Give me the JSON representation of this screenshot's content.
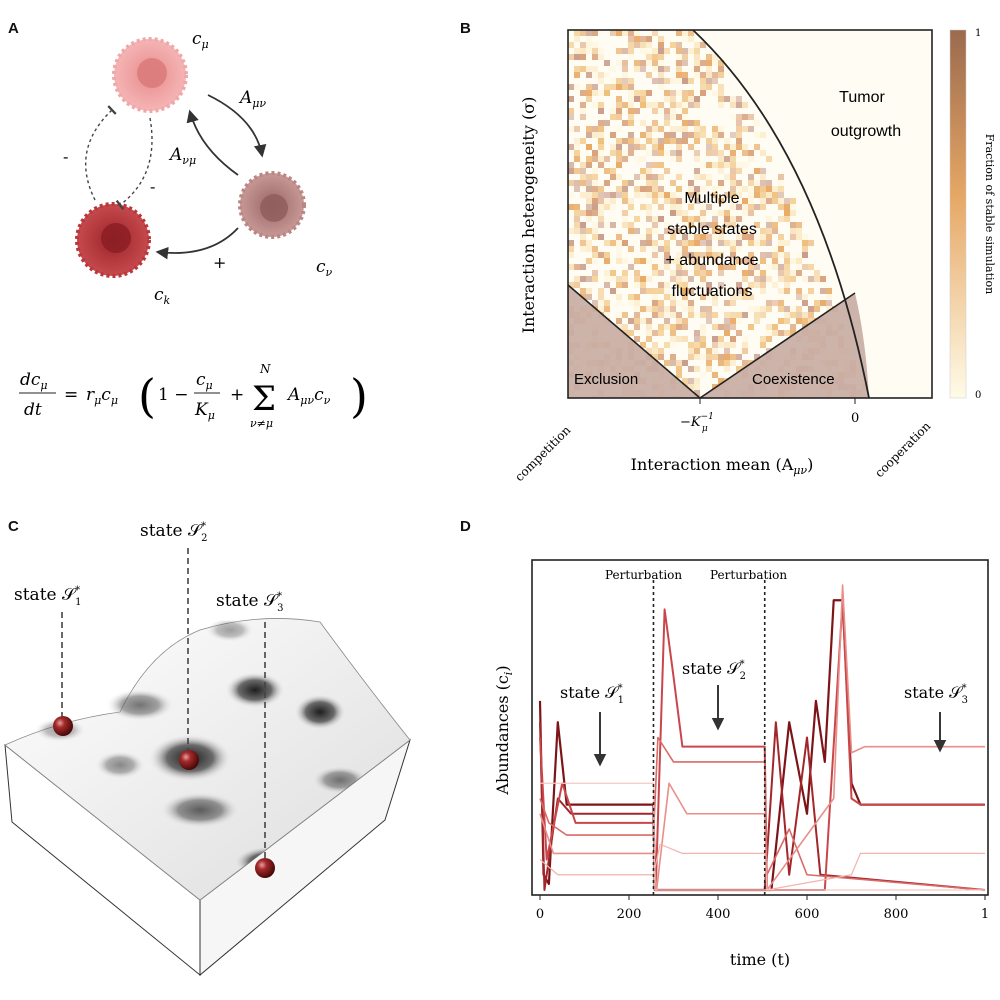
{
  "panels": {
    "a": "A",
    "b": "B",
    "c": "C",
    "d": "D"
  },
  "panel_a": {
    "cell_labels": {
      "mu": "c",
      "mu_sub": "μ",
      "nu": "c",
      "nu_sub": "ν",
      "k": "c",
      "k_sub": "k"
    },
    "edge_labels": {
      "a_munu": "A",
      "a_munu_sub": "μν",
      "a_numu": "A",
      "a_numu_sub": "νμ"
    },
    "signs": {
      "minus1": "-",
      "minus2": "-",
      "plus": "+"
    },
    "equation": {
      "lhs_num": "dc",
      "lhs_num_sub": "μ",
      "lhs_den": "dt",
      "eq": "=",
      "r": "r",
      "r_sub": "μ",
      "c": "c",
      "c_sub": "μ",
      "one_minus": "1 −",
      "frac_num": "c",
      "frac_num_sub": "μ",
      "frac_den": "K",
      "frac_den_sub": "μ",
      "plus": "+",
      "sum_top": "N",
      "sum_bottom": "ν≠μ",
      "term": "A",
      "term_sub": "μν",
      "term_c": "c",
      "term_c_sub": "ν"
    },
    "colors": {
      "mu": "#f0a7a7",
      "nu": "#b98684",
      "k": "#b8383c"
    }
  },
  "panel_b": {
    "ylabel": "Interaction heterogeneity (σ)",
    "xlabel": "Interaction mean (A",
    "xlabel_sub": "μν",
    "xlabel_end": ")",
    "competition": "competition",
    "cooperation": "cooperation",
    "tick_kinv": "−K",
    "tick_kinv_sup": "−1",
    "tick_kinv_sub": "μ",
    "tick_zero": "0",
    "colorbar_label": "Fraction of stable simulation",
    "colorbar_top": "1",
    "colorbar_bottom": "0",
    "regions": {
      "tumor1": "Tumor",
      "tumor2": "outgrowth",
      "multi1": "Multiple",
      "multi2": "stable states",
      "multi3": "+ abundance",
      "multi4": "fluctuations",
      "exclusion": "Exclusion",
      "coexistence": "Coexistence"
    },
    "colors": {
      "region": "#c9aea5",
      "bar_top": "#9b6a4e",
      "bar_mid": "#e8a964",
      "bar_bottom": "#fffbe8"
    }
  },
  "panel_c": {
    "state1": "state 𝒮",
    "state1_sub": "1",
    "state2": "state 𝒮",
    "state2_sub": "2",
    "state3": "state 𝒮",
    "state3_sub": "3",
    "star": "*",
    "ball_color": "#8c1d1d"
  },
  "panel_d": {
    "ylabel": "Abundances (c",
    "ylabel_sub": "i",
    "ylabel_end": ")",
    "xlabel": "time (t)",
    "perturbation1": "Perturbation",
    "perturbation2": "Perturbation",
    "state1": "state 𝒮",
    "state1_sub": "1",
    "state2": "state 𝒮",
    "state2_sub": "2",
    "state3": "state 𝒮",
    "state3_sub": "3",
    "star": "*",
    "xticks": [
      "0",
      "200",
      "400",
      "600",
      "800",
      "1"
    ]
  },
  "chart_data": {
    "type": "line",
    "xlabel": "time (t)",
    "ylabel": "Abundances (c_i)",
    "xlim": [
      0,
      1000
    ],
    "xticks": [
      0,
      200,
      400,
      600,
      800
    ],
    "perturbations": [
      255,
      505
    ],
    "series": [
      {
        "values": [
          [
            0,
            0.62
          ],
          [
            8,
            0.05
          ],
          [
            20,
            0.02
          ],
          [
            40,
            0.55
          ],
          [
            60,
            0.28
          ],
          [
            100,
            0.28
          ],
          [
            255,
            0.28
          ],
          [
            258,
            0.0
          ],
          [
            505,
            0.0
          ],
          [
            520,
            0.0
          ],
          [
            560,
            0.55
          ],
          [
            600,
            0.25
          ],
          [
            620,
            0.62
          ],
          [
            640,
            0.42
          ],
          [
            660,
            0.95
          ],
          [
            680,
            0.95
          ],
          [
            700,
            0.35
          ],
          [
            720,
            0.28
          ],
          [
            1000,
            0.28
          ]
        ]
      },
      {
        "values": [
          [
            0,
            0.55
          ],
          [
            10,
            0.0
          ],
          [
            40,
            0.3
          ],
          [
            70,
            0.25
          ],
          [
            255,
            0.25
          ],
          [
            258,
            0.0
          ],
          [
            505,
            0.0
          ],
          [
            530,
            0.55
          ],
          [
            560,
            0.05
          ],
          [
            600,
            0.5
          ],
          [
            630,
            0.05
          ],
          [
            1000,
            0.0
          ]
        ]
      },
      {
        "values": [
          [
            0,
            0.5
          ],
          [
            15,
            0.1
          ],
          [
            50,
            0.35
          ],
          [
            80,
            0.22
          ],
          [
            255,
            0.22
          ],
          [
            260,
            0.0
          ],
          [
            280,
            0.92
          ],
          [
            300,
            0.7
          ],
          [
            320,
            0.47
          ],
          [
            505,
            0.47
          ],
          [
            510,
            0.0
          ],
          [
            640,
            0.0
          ],
          [
            680,
            0.95
          ],
          [
            700,
            0.3
          ],
          [
            720,
            0.28
          ],
          [
            1000,
            0.28
          ]
        ]
      },
      {
        "values": [
          [
            0,
            0.3
          ],
          [
            20,
            0.22
          ],
          [
            60,
            0.18
          ],
          [
            255,
            0.18
          ],
          [
            265,
            0.5
          ],
          [
            300,
            0.42
          ],
          [
            505,
            0.42
          ],
          [
            510,
            0.05
          ],
          [
            560,
            0.2
          ],
          [
            600,
            0.05
          ],
          [
            1000,
            0.0
          ]
        ]
      },
      {
        "values": [
          [
            0,
            0.25
          ],
          [
            30,
            0.12
          ],
          [
            255,
            0.12
          ],
          [
            262,
            0.0
          ],
          [
            290,
            0.35
          ],
          [
            330,
            0.25
          ],
          [
            505,
            0.25
          ],
          [
            510,
            0.0
          ],
          [
            660,
            0.3
          ],
          [
            680,
            1.0
          ],
          [
            700,
            0.45
          ],
          [
            730,
            0.47
          ],
          [
            1000,
            0.47
          ]
        ]
      },
      {
        "values": [
          [
            0,
            0.1
          ],
          [
            40,
            0.05
          ],
          [
            255,
            0.05
          ],
          [
            270,
            0.15
          ],
          [
            320,
            0.12
          ],
          [
            505,
            0.12
          ],
          [
            510,
            0.0
          ],
          [
            700,
            0.05
          ],
          [
            720,
            0.12
          ],
          [
            1000,
            0.12
          ]
        ]
      },
      {
        "values": [
          [
            0,
            0.35
          ],
          [
            255,
            0.35
          ],
          [
            258,
            0.0
          ],
          [
            505,
            0.0
          ],
          [
            1000,
            0.0
          ]
        ]
      }
    ]
  }
}
